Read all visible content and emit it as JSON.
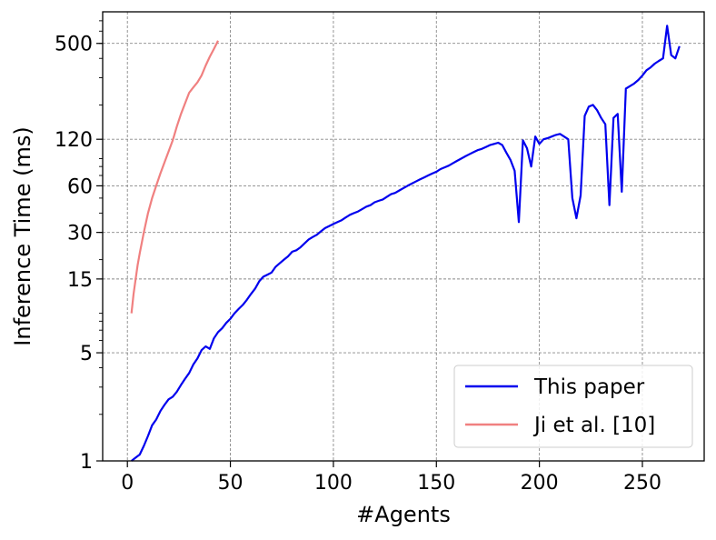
{
  "chart_data": {
    "type": "line",
    "xlabel": "#Agents",
    "ylabel": "Inference Time (ms)",
    "xlim": [
      -12,
      280
    ],
    "ylim": [
      1,
      800
    ],
    "y_scale": "log",
    "x_ticks": [
      0,
      50,
      100,
      150,
      200,
      250
    ],
    "y_ticks": [
      1,
      5,
      15,
      30,
      60,
      120,
      500
    ],
    "grid": true,
    "legend_position": "bottom-right",
    "series": [
      {
        "name": "This paper",
        "color": "#0000ee",
        "points": [
          [
            2,
            1.0
          ],
          [
            4,
            1.05
          ],
          [
            6,
            1.1
          ],
          [
            8,
            1.25
          ],
          [
            10,
            1.45
          ],
          [
            12,
            1.7
          ],
          [
            14,
            1.85
          ],
          [
            16,
            2.1
          ],
          [
            18,
            2.3
          ],
          [
            20,
            2.5
          ],
          [
            22,
            2.6
          ],
          [
            24,
            2.8
          ],
          [
            26,
            3.1
          ],
          [
            28,
            3.4
          ],
          [
            30,
            3.7
          ],
          [
            32,
            4.2
          ],
          [
            34,
            4.6
          ],
          [
            36,
            5.2
          ],
          [
            38,
            5.5
          ],
          [
            40,
            5.3
          ],
          [
            42,
            6.2
          ],
          [
            44,
            6.8
          ],
          [
            46,
            7.2
          ],
          [
            48,
            7.8
          ],
          [
            50,
            8.3
          ],
          [
            52,
            9.0
          ],
          [
            54,
            9.6
          ],
          [
            56,
            10.2
          ],
          [
            58,
            11.0
          ],
          [
            60,
            12.0
          ],
          [
            62,
            13.0
          ],
          [
            64,
            14.5
          ],
          [
            66,
            15.5
          ],
          [
            68,
            16.0
          ],
          [
            70,
            16.5
          ],
          [
            72,
            18.0
          ],
          [
            74,
            19.0
          ],
          [
            76,
            20.0
          ],
          [
            78,
            21.0
          ],
          [
            80,
            22.5
          ],
          [
            82,
            23.0
          ],
          [
            84,
            24.0
          ],
          [
            86,
            25.5
          ],
          [
            88,
            27.0
          ],
          [
            90,
            28.0
          ],
          [
            92,
            29.0
          ],
          [
            94,
            30.5
          ],
          [
            96,
            32.0
          ],
          [
            98,
            33.0
          ],
          [
            100,
            34.0
          ],
          [
            102,
            35.0
          ],
          [
            104,
            36.0
          ],
          [
            106,
            37.5
          ],
          [
            108,
            39.0
          ],
          [
            110,
            40.0
          ],
          [
            112,
            41.0
          ],
          [
            114,
            42.5
          ],
          [
            116,
            44.0
          ],
          [
            118,
            45.0
          ],
          [
            120,
            47.0
          ],
          [
            122,
            48.0
          ],
          [
            124,
            49.0
          ],
          [
            126,
            51.0
          ],
          [
            128,
            53.0
          ],
          [
            130,
            54.0
          ],
          [
            132,
            56.0
          ],
          [
            134,
            58.0
          ],
          [
            136,
            60.0
          ],
          [
            138,
            62.0
          ],
          [
            140,
            64.0
          ],
          [
            142,
            66.0
          ],
          [
            144,
            68.0
          ],
          [
            146,
            70.0
          ],
          [
            148,
            72.0
          ],
          [
            150,
            74.0
          ],
          [
            152,
            77.0
          ],
          [
            154,
            79.0
          ],
          [
            156,
            81.0
          ],
          [
            158,
            84.0
          ],
          [
            160,
            87.0
          ],
          [
            162,
            90.0
          ],
          [
            164,
            93.0
          ],
          [
            166,
            96.0
          ],
          [
            168,
            99.0
          ],
          [
            170,
            102.0
          ],
          [
            172,
            104.0
          ],
          [
            174,
            107.0
          ],
          [
            176,
            110.0
          ],
          [
            178,
            112.0
          ],
          [
            180,
            114.0
          ],
          [
            182,
            110.0
          ],
          [
            184,
            98.0
          ],
          [
            186,
            88.0
          ],
          [
            188,
            75.0
          ],
          [
            190,
            35.0
          ],
          [
            192,
            118.0
          ],
          [
            194,
            105.0
          ],
          [
            196,
            80.0
          ],
          [
            198,
            125.0
          ],
          [
            200,
            112.0
          ],
          [
            202,
            120.0
          ],
          [
            204,
            122.0
          ],
          [
            206,
            125.0
          ],
          [
            208,
            128.0
          ],
          [
            210,
            130.0
          ],
          [
            212,
            125.0
          ],
          [
            214,
            120.0
          ],
          [
            216,
            50.0
          ],
          [
            218,
            37.0
          ],
          [
            220,
            52.0
          ],
          [
            222,
            170.0
          ],
          [
            224,
            195.0
          ],
          [
            226,
            200.0
          ],
          [
            228,
            185.0
          ],
          [
            230,
            165.0
          ],
          [
            232,
            150.0
          ],
          [
            234,
            45.0
          ],
          [
            236,
            165.0
          ],
          [
            238,
            175.0
          ],
          [
            240,
            55.0
          ],
          [
            242,
            255.0
          ],
          [
            244,
            265.0
          ],
          [
            246,
            275.0
          ],
          [
            248,
            290.0
          ],
          [
            250,
            310.0
          ],
          [
            252,
            335.0
          ],
          [
            254,
            350.0
          ],
          [
            256,
            370.0
          ],
          [
            258,
            385.0
          ],
          [
            260,
            400.0
          ],
          [
            262,
            650.0
          ],
          [
            264,
            420.0
          ],
          [
            266,
            400.0
          ],
          [
            268,
            480.0
          ]
        ]
      },
      {
        "name": "Ji et al. [10]",
        "color": "#f08080",
        "points": [
          [
            2,
            9.0
          ],
          [
            3,
            12.0
          ],
          [
            4,
            15.0
          ],
          [
            5,
            18.5
          ],
          [
            6,
            22.0
          ],
          [
            8,
            30.0
          ],
          [
            10,
            40.0
          ],
          [
            12,
            50.0
          ],
          [
            14,
            60.0
          ],
          [
            16,
            72.0
          ],
          [
            18,
            85.0
          ],
          [
            20,
            100.0
          ],
          [
            22,
            118.0
          ],
          [
            24,
            145.0
          ],
          [
            26,
            175.0
          ],
          [
            28,
            205.0
          ],
          [
            30,
            240.0
          ],
          [
            32,
            260.0
          ],
          [
            34,
            280.0
          ],
          [
            36,
            310.0
          ],
          [
            38,
            360.0
          ],
          [
            40,
            410.0
          ],
          [
            42,
            460.0
          ],
          [
            44,
            520.0
          ]
        ]
      }
    ]
  }
}
